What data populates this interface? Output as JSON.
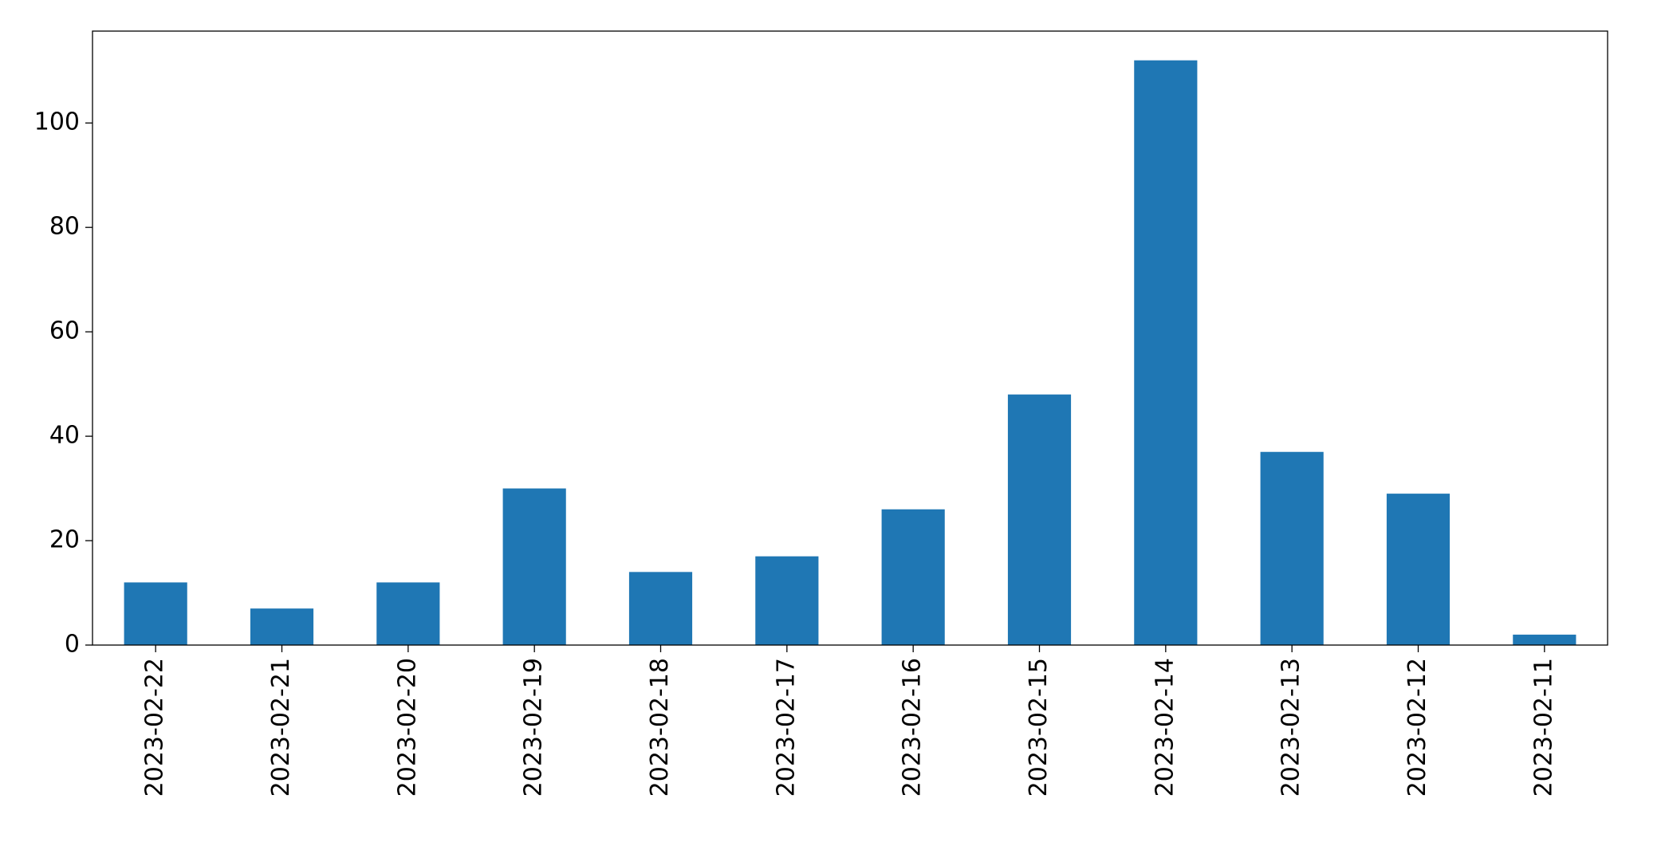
{
  "chart_data": {
    "type": "bar",
    "categories": [
      "2023-02-22",
      "2023-02-21",
      "2023-02-20",
      "2023-02-19",
      "2023-02-18",
      "2023-02-17",
      "2023-02-16",
      "2023-02-15",
      "2023-02-14",
      "2023-02-13",
      "2023-02-12",
      "2023-02-11"
    ],
    "values": [
      12,
      7,
      12,
      30,
      14,
      17,
      26,
      48,
      112,
      37,
      29,
      2
    ],
    "color": "#1f77b4",
    "ylim": [
      0,
      117.6
    ],
    "yticks": [
      0,
      20,
      40,
      60,
      80,
      100
    ],
    "grid": false
  }
}
